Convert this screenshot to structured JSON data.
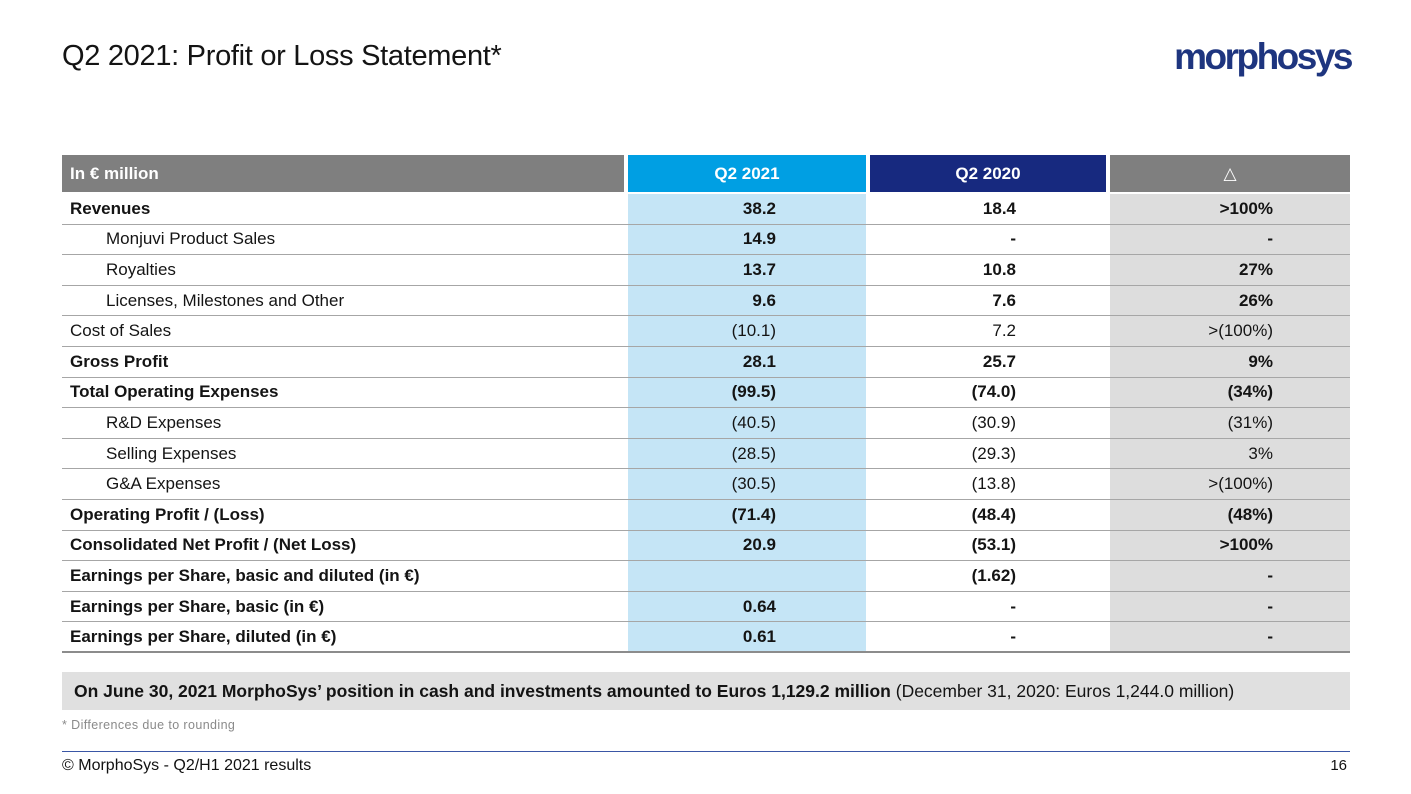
{
  "slide": {
    "title": "Q2 2021: Profit or Loss Statement*",
    "logo": "morphosys",
    "footnote": "* Differences due to rounding",
    "footer": "© MorphoSys - Q2/H1 2021 results",
    "page_number": "16"
  },
  "highlight_note": {
    "bold_text": "On June 30, 2021 MorphoSys’ position in cash and investments amounted to Euros 1,129.2 million",
    "regular_text": " (December 31, 2020: Euros 1,244.0 million)"
  },
  "table": {
    "header": {
      "label_col": "In € million",
      "col_2021": "Q2 2021",
      "col_2020": "Q2 2020",
      "col_delta": "△"
    },
    "rows": [
      {
        "label": "Revenues",
        "q2_2021": "38.2",
        "q2_2020": "18.4",
        "delta": ">100%"
      },
      {
        "label": "Monjuvi Product Sales",
        "q2_2021": "14.9",
        "q2_2020": "-",
        "delta": "-"
      },
      {
        "label": "Royalties",
        "q2_2021": "13.7",
        "q2_2020": "10.8",
        "delta": "27%"
      },
      {
        "label": "Licenses, Milestones and Other",
        "q2_2021": "9.6",
        "q2_2020": "7.6",
        "delta": "26%"
      },
      {
        "label": "Cost of Sales",
        "q2_2021": "(10.1)",
        "q2_2020": "7.2",
        "delta": ">(100%)"
      },
      {
        "label": "Gross Profit",
        "q2_2021": "28.1",
        "q2_2020": "25.7",
        "delta": "9%"
      },
      {
        "label": "Total Operating Expenses",
        "q2_2021": "(99.5)",
        "q2_2020": "(74.0)",
        "delta": "(34%)"
      },
      {
        "label": "R&D Expenses",
        "q2_2021": "(40.5)",
        "q2_2020": "(30.9)",
        "delta": "(31%)"
      },
      {
        "label": "Selling Expenses",
        "q2_2021": "(28.5)",
        "q2_2020": "(29.3)",
        "delta": "3%"
      },
      {
        "label": "G&A Expenses",
        "q2_2021": "(30.5)",
        "q2_2020": "(13.8)",
        "delta": ">(100%)"
      },
      {
        "label": "Operating Profit / (Loss)",
        "q2_2021": "(71.4)",
        "q2_2020": "(48.4)",
        "delta": "(48%)"
      },
      {
        "label": "Consolidated Net Profit / (Net Loss)",
        "q2_2021": "20.9",
        "q2_2020": "(53.1)",
        "delta": ">100%"
      },
      {
        "label": "Earnings per Share, basic and diluted (in €)",
        "q2_2021": "",
        "q2_2020": "(1.62)",
        "delta": "-"
      },
      {
        "label": "Earnings per Share, basic (in €)",
        "q2_2021": "0.64",
        "q2_2020": "-",
        "delta": "-"
      },
      {
        "label": "Earnings per Share, diluted (in €)",
        "q2_2021": "0.61",
        "q2_2020": "-",
        "delta": "-"
      }
    ]
  },
  "colors": {
    "header_gray": "#7F7F7F",
    "header_cyan": "#009FE3",
    "header_navy": "#17297F",
    "col_2021_bg": "#C5E5F6",
    "col_delta_bg": "#DDDDDD",
    "note_bg": "#E0E0E0",
    "row_line": "#A6A6A6",
    "logo_navy": "#1E357F",
    "footer_line_blue": "#3A56A5"
  }
}
